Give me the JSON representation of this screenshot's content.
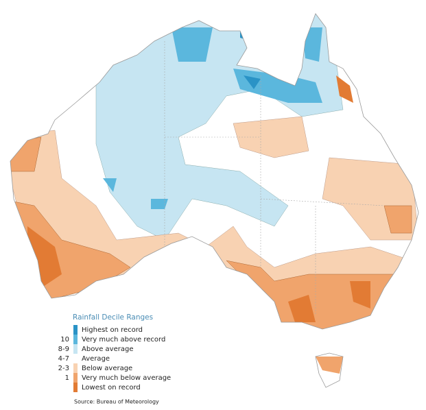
{
  "legend": {
    "title": "Rainfall Decile Ranges",
    "items": [
      {
        "decile": null,
        "label": "Highest on record",
        "color": "#2a93c6"
      },
      {
        "decile": "10",
        "label": "Very much above record",
        "color": "#5bb7dd"
      },
      {
        "decile": "8-9",
        "label": "Above average",
        "color": "#c6e5f2"
      },
      {
        "decile": "4-7",
        "label": "Average",
        "color": "#ffffff"
      },
      {
        "decile": "2-3",
        "label": "Below average",
        "color": "#f8d2b2"
      },
      {
        "decile": "1",
        "label": "Very much below average",
        "color": "#f0a46c"
      },
      {
        "decile": null,
        "label": "Lowest on record",
        "color": "#e27b34"
      }
    ]
  },
  "source": "Source: Bureau of Meteorology"
}
